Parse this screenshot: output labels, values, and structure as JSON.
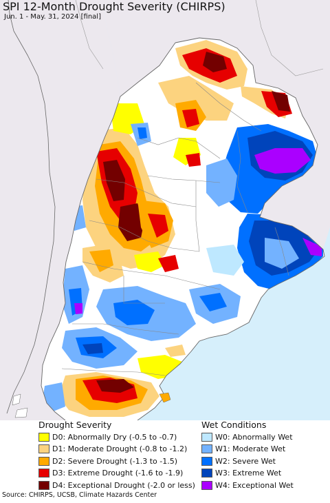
{
  "title": "SPI 12-Month Drought Severity (CHIRPS)",
  "subtitle": "Jun. 1 - May. 31, 2024 [final]",
  "colors": {
    "ocean": "#d6effb",
    "land_outside": "#ece8ee",
    "land": "#ffffff",
    "border": "#888888"
  },
  "legend": {
    "drought_title": "Drought Severity",
    "wet_title": "Wet Conditions",
    "drought": [
      {
        "label": "D0: Abnormally Dry (-0.5 to -0.7)",
        "color": "#ffff00"
      },
      {
        "label": "D1: Moderate Drought (-0.8 to -1.2)",
        "color": "#fcd37f"
      },
      {
        "label": "D2: Severe Drought (-1.3 to -1.5)",
        "color": "#ffaa00"
      },
      {
        "label": "D3: Extreme Drought (-1.6 to -1.9)",
        "color": "#e60000"
      },
      {
        "label": "D4: Exceptional Drought (-2.0 or less)",
        "color": "#730000"
      }
    ],
    "wet": [
      {
        "label": "W0: Abnormally Wet",
        "color": "#bee8ff"
      },
      {
        "label": "W1: Moderate Wet",
        "color": "#73b2ff"
      },
      {
        "label": "W2: Severe Wet",
        "color": "#0070ff"
      },
      {
        "label": "W3: Extreme Wet",
        "color": "#0044bb"
      },
      {
        "label": "W4: Exceptional Wet",
        "color": "#aa00ff"
      }
    ]
  },
  "source": "Source: CHIRPS, UCSB, Climate Hazards Center"
}
